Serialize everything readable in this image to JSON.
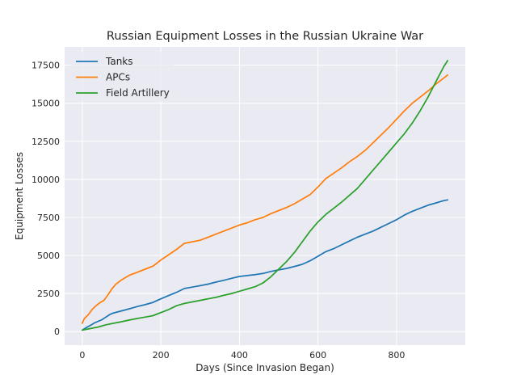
{
  "chart_data": {
    "type": "line",
    "title": "Russian Equipment Losses in the Russian Ukraine War",
    "xlabel": "Days (Since Invasion Began)",
    "ylabel": "Equipment Losses",
    "xlim": [
      -45,
      975
    ],
    "ylim": [
      -890,
      18700
    ],
    "xticks": [
      0,
      200,
      400,
      600,
      800
    ],
    "yticks": [
      0,
      2500,
      5000,
      7500,
      10000,
      12500,
      15000,
      17500
    ],
    "grid": true,
    "legend_position": "upper-left",
    "series": [
      {
        "name": "Tanks",
        "color": "#1f77b4",
        "points": [
          [
            0,
            100
          ],
          [
            10,
            260
          ],
          [
            20,
            400
          ],
          [
            30,
            560
          ],
          [
            50,
            780
          ],
          [
            60,
            950
          ],
          [
            70,
            1120
          ],
          [
            80,
            1230
          ],
          [
            100,
            1360
          ],
          [
            120,
            1500
          ],
          [
            140,
            1650
          ],
          [
            160,
            1770
          ],
          [
            180,
            1920
          ],
          [
            200,
            2150
          ],
          [
            220,
            2370
          ],
          [
            240,
            2580
          ],
          [
            260,
            2830
          ],
          [
            280,
            2920
          ],
          [
            300,
            3020
          ],
          [
            320,
            3120
          ],
          [
            340,
            3250
          ],
          [
            360,
            3370
          ],
          [
            380,
            3500
          ],
          [
            400,
            3620
          ],
          [
            420,
            3680
          ],
          [
            440,
            3740
          ],
          [
            460,
            3820
          ],
          [
            480,
            3950
          ],
          [
            500,
            4050
          ],
          [
            520,
            4150
          ],
          [
            540,
            4280
          ],
          [
            560,
            4420
          ],
          [
            580,
            4650
          ],
          [
            600,
            4950
          ],
          [
            620,
            5250
          ],
          [
            640,
            5450
          ],
          [
            660,
            5700
          ],
          [
            680,
            5950
          ],
          [
            700,
            6200
          ],
          [
            720,
            6400
          ],
          [
            740,
            6600
          ],
          [
            760,
            6850
          ],
          [
            780,
            7100
          ],
          [
            800,
            7350
          ],
          [
            820,
            7650
          ],
          [
            840,
            7900
          ],
          [
            860,
            8100
          ],
          [
            880,
            8300
          ],
          [
            900,
            8450
          ],
          [
            920,
            8600
          ],
          [
            930,
            8650
          ]
        ]
      },
      {
        "name": "APCs",
        "color": "#ff7f0e",
        "points": [
          [
            0,
            550
          ],
          [
            5,
            850
          ],
          [
            15,
            1100
          ],
          [
            25,
            1450
          ],
          [
            35,
            1700
          ],
          [
            45,
            1900
          ],
          [
            55,
            2050
          ],
          [
            65,
            2400
          ],
          [
            75,
            2800
          ],
          [
            85,
            3100
          ],
          [
            100,
            3400
          ],
          [
            120,
            3700
          ],
          [
            140,
            3900
          ],
          [
            160,
            4100
          ],
          [
            180,
            4300
          ],
          [
            190,
            4500
          ],
          [
            200,
            4700
          ],
          [
            220,
            5050
          ],
          [
            240,
            5400
          ],
          [
            260,
            5800
          ],
          [
            280,
            5900
          ],
          [
            300,
            6000
          ],
          [
            320,
            6200
          ],
          [
            340,
            6400
          ],
          [
            360,
            6600
          ],
          [
            380,
            6800
          ],
          [
            400,
            7000
          ],
          [
            420,
            7150
          ],
          [
            440,
            7350
          ],
          [
            460,
            7500
          ],
          [
            480,
            7750
          ],
          [
            500,
            7950
          ],
          [
            520,
            8150
          ],
          [
            540,
            8400
          ],
          [
            560,
            8700
          ],
          [
            580,
            9000
          ],
          [
            600,
            9500
          ],
          [
            620,
            10050
          ],
          [
            640,
            10400
          ],
          [
            660,
            10750
          ],
          [
            680,
            11150
          ],
          [
            700,
            11500
          ],
          [
            720,
            11900
          ],
          [
            740,
            12400
          ],
          [
            760,
            12900
          ],
          [
            780,
            13400
          ],
          [
            800,
            13950
          ],
          [
            820,
            14500
          ],
          [
            840,
            15000
          ],
          [
            860,
            15400
          ],
          [
            880,
            15800
          ],
          [
            900,
            16250
          ],
          [
            920,
            16650
          ],
          [
            930,
            16850
          ]
        ]
      },
      {
        "name": "Field Artillery",
        "color": "#2ca02c",
        "points": [
          [
            0,
            100
          ],
          [
            20,
            200
          ],
          [
            40,
            300
          ],
          [
            60,
            450
          ],
          [
            80,
            550
          ],
          [
            100,
            650
          ],
          [
            120,
            760
          ],
          [
            140,
            860
          ],
          [
            160,
            950
          ],
          [
            180,
            1050
          ],
          [
            200,
            1250
          ],
          [
            220,
            1450
          ],
          [
            240,
            1700
          ],
          [
            260,
            1850
          ],
          [
            280,
            1950
          ],
          [
            300,
            2050
          ],
          [
            320,
            2150
          ],
          [
            340,
            2250
          ],
          [
            360,
            2380
          ],
          [
            380,
            2500
          ],
          [
            400,
            2650
          ],
          [
            420,
            2800
          ],
          [
            440,
            2950
          ],
          [
            460,
            3200
          ],
          [
            480,
            3600
          ],
          [
            500,
            4100
          ],
          [
            520,
            4600
          ],
          [
            540,
            5200
          ],
          [
            560,
            5900
          ],
          [
            580,
            6600
          ],
          [
            600,
            7200
          ],
          [
            620,
            7700
          ],
          [
            640,
            8100
          ],
          [
            660,
            8500
          ],
          [
            680,
            8950
          ],
          [
            700,
            9400
          ],
          [
            720,
            10000
          ],
          [
            740,
            10600
          ],
          [
            760,
            11200
          ],
          [
            780,
            11800
          ],
          [
            800,
            12400
          ],
          [
            820,
            13000
          ],
          [
            840,
            13700
          ],
          [
            860,
            14500
          ],
          [
            880,
            15400
          ],
          [
            900,
            16400
          ],
          [
            920,
            17400
          ],
          [
            930,
            17800
          ]
        ]
      }
    ]
  }
}
